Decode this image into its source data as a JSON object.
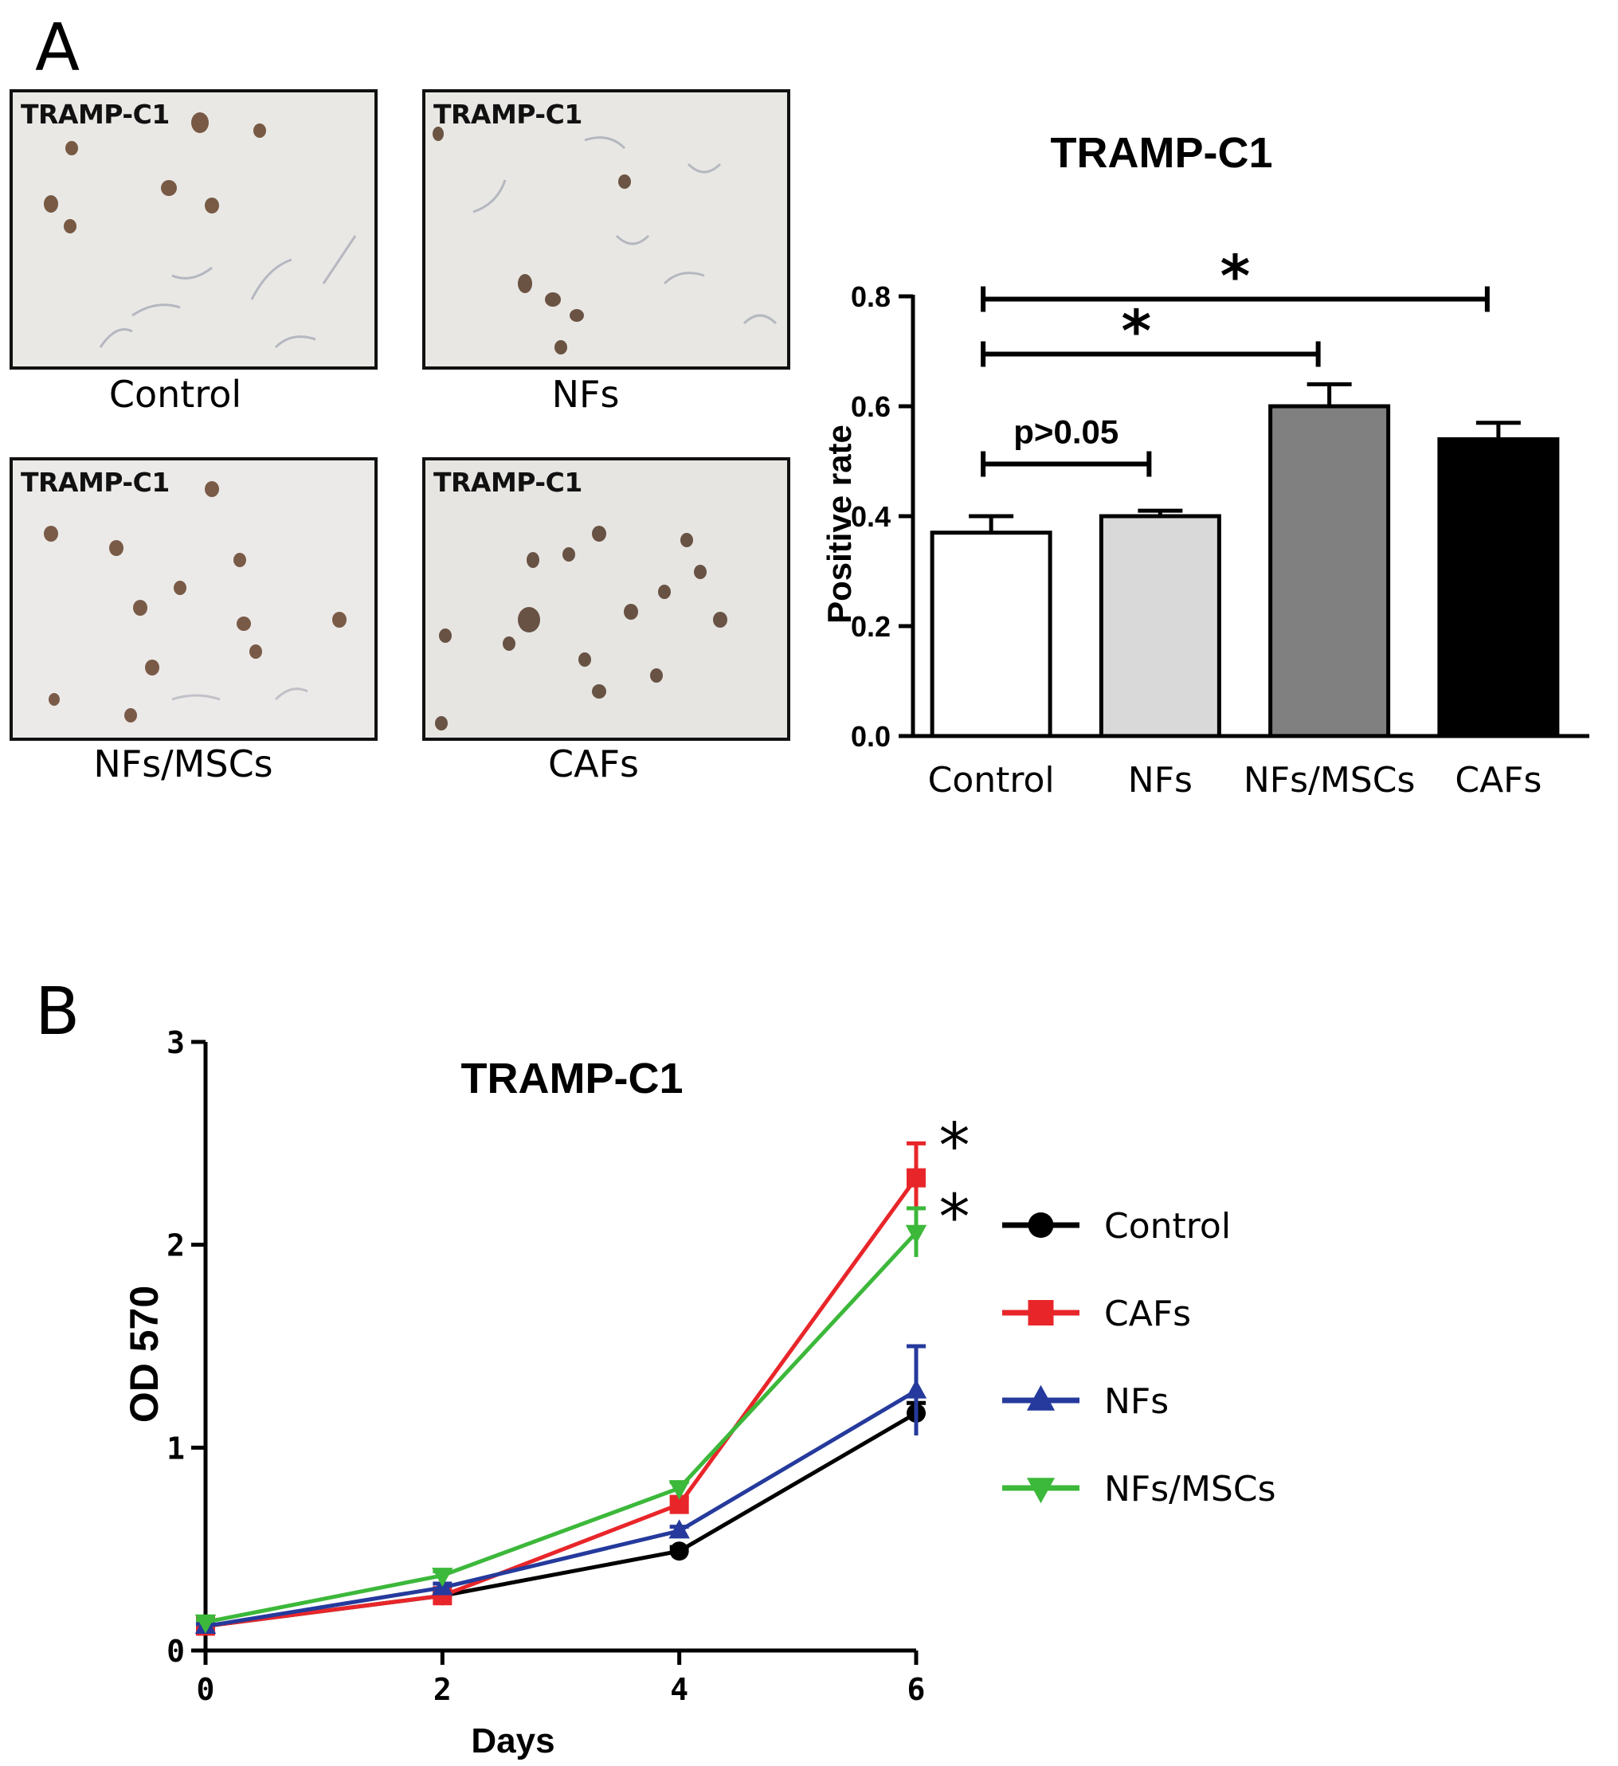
{
  "panels": {
    "a_label": "A",
    "b_label": "B"
  },
  "micrographs": [
    {
      "label": "TRAMP-C1",
      "caption": "Control"
    },
    {
      "label": "TRAMP-C1",
      "caption": "NFs"
    },
    {
      "label": "TRAMP-C1",
      "caption": "NFs/MSCs"
    },
    {
      "label": "TRAMP-C1",
      "caption": "CAFs"
    }
  ],
  "chart_data": [
    {
      "type": "bar",
      "title": "TRAMP-C1",
      "ylabel": "Positive rate",
      "xlabel": "",
      "categories": [
        "Control",
        "NFs",
        "NFs/MSCs",
        "CAFs"
      ],
      "values": [
        0.37,
        0.4,
        0.6,
        0.54
      ],
      "errors": [
        0.03,
        0.01,
        0.04,
        0.03
      ],
      "colors": [
        "#ffffff",
        "#d9d9d9",
        "#808080",
        "#000000"
      ],
      "ylim": [
        0,
        0.8
      ],
      "yticks": [
        "0.0",
        "0.2",
        "0.4",
        "0.6",
        "0.8"
      ],
      "annotations": [
        {
          "from": "Control",
          "to": "CAFs",
          "text": "*"
        },
        {
          "from": "Control",
          "to": "NFs/MSCs",
          "text": "*"
        },
        {
          "from": "Control",
          "to": "NFs",
          "text": "p>0.05"
        }
      ]
    },
    {
      "type": "line",
      "title": "TRAMP-C1",
      "xlabel": "Days",
      "ylabel": "OD 570",
      "x": [
        0,
        2,
        4,
        6
      ],
      "xlim": [
        0,
        6
      ],
      "ylim": [
        0,
        3
      ],
      "xticks": [
        "0",
        "2",
        "4",
        "6"
      ],
      "yticks": [
        "0",
        "1",
        "2",
        "3"
      ],
      "legend_position": "right",
      "series": [
        {
          "name": "Control",
          "color": "#000000",
          "marker": "circle",
          "values": [
            0.12,
            0.27,
            0.49,
            1.17
          ],
          "errors": [
            0.01,
            0.02,
            0.02,
            0.05
          ]
        },
        {
          "name": "CAFs",
          "color": "#e8262a",
          "marker": "square",
          "values": [
            0.12,
            0.27,
            0.72,
            2.33
          ],
          "errors": [
            0.01,
            0.02,
            0.03,
            0.17
          ]
        },
        {
          "name": "NFs",
          "color": "#253a9c",
          "marker": "triangle-up",
          "values": [
            0.12,
            0.31,
            0.59,
            1.28
          ],
          "errors": [
            0.01,
            0.02,
            0.02,
            0.22
          ]
        },
        {
          "name": "NFs/MSCs",
          "color": "#3cb83a",
          "marker": "triangle-down",
          "values": [
            0.14,
            0.37,
            0.8,
            2.06
          ],
          "errors": [
            0.01,
            0.02,
            0.03,
            0.12
          ]
        }
      ],
      "annotations": [
        {
          "series": "CAFs",
          "text": "*"
        },
        {
          "series": "NFs/MSCs",
          "text": "*"
        }
      ]
    }
  ]
}
